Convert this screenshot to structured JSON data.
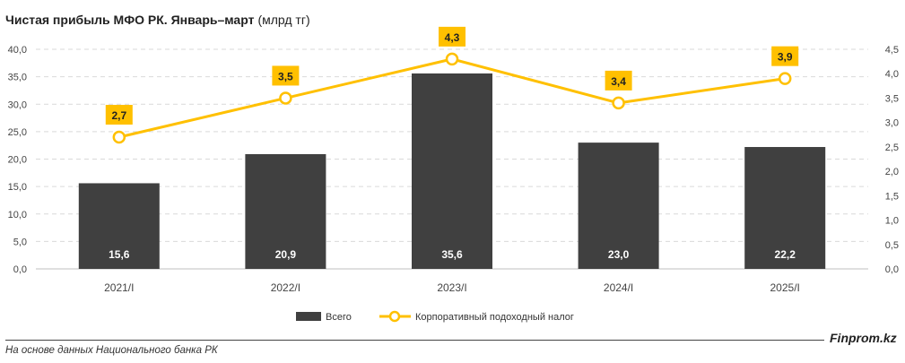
{
  "title_bold": "Чистая прибыль МФО РК. Январь–март",
  "title_unit": "(млрд тг)",
  "source": "На основе данных Национального банка РК",
  "brand": "Finprom.kz",
  "colors": {
    "bar": "#404040",
    "line": "#FFC000",
    "label_box": "#FFC000",
    "grid": "#d9d9d9"
  },
  "chart_data": {
    "type": "bar",
    "categories": [
      "2021/I",
      "2022/I",
      "2023/I",
      "2024/I",
      "2025/I"
    ],
    "series": [
      {
        "name": "Всего",
        "type": "bar",
        "axis": "left",
        "values": [
          15.6,
          20.9,
          35.6,
          23.0,
          22.2
        ],
        "labels": [
          "15,6",
          "20,9",
          "35,6",
          "23,0",
          "22,2"
        ]
      },
      {
        "name": "Корпоративный подоходный налог",
        "type": "line",
        "axis": "right",
        "values": [
          2.7,
          3.5,
          4.3,
          3.4,
          3.9
        ],
        "labels": [
          "2,7",
          "3,5",
          "4,3",
          "3,4",
          "3,9"
        ]
      }
    ],
    "y_left": {
      "min": 0,
      "max": 40,
      "step": 5,
      "ticks": [
        "0,0",
        "5,0",
        "10,0",
        "15,0",
        "20,0",
        "25,0",
        "30,0",
        "35,0",
        "40,0"
      ]
    },
    "y_right": {
      "min": 0,
      "max": 4.5,
      "step": 0.5,
      "ticks": [
        "0,0",
        "0,5",
        "1,0",
        "1,5",
        "2,0",
        "2,5",
        "3,0",
        "3,5",
        "4,0",
        "4,5"
      ]
    },
    "grid": true,
    "legend_position": "bottom"
  }
}
